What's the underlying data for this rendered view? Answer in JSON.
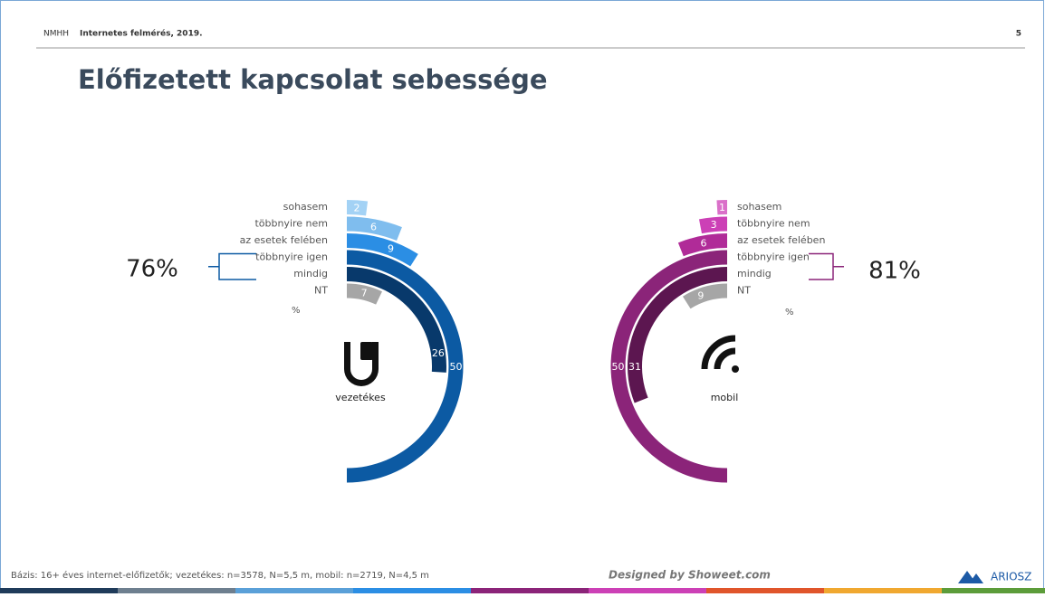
{
  "header": {
    "logo": "NMHH",
    "survey": "Internetes felmérés, 2019.",
    "page": "5"
  },
  "title": "Előfizetett kapcsolat sebessége",
  "chart_data": [
    {
      "type": "radial_bar",
      "direction": "clockwise",
      "name": "vezetékes",
      "categories": [
        "sohasem",
        "többnyire nem",
        "az esetek felében",
        "többnyire igen",
        "mindig",
        "NT"
      ],
      "values": [
        2,
        6,
        9,
        50,
        26,
        7
      ],
      "colors": [
        "#a3d2f5",
        "#7fbdee",
        "#2b8ee4",
        "#0c5aa3",
        "#08396b",
        "#a6a6a6"
      ],
      "full_circle": 100,
      "unit_label": "%",
      "summary": "76%"
    },
    {
      "type": "radial_bar",
      "direction": "counterclockwise",
      "name": "mobil",
      "categories": [
        "sohasem",
        "többnyire nem",
        "az esetek felében",
        "többnyire igen",
        "mindig",
        "NT"
      ],
      "values": [
        1,
        3,
        6,
        50,
        31,
        9
      ],
      "colors": [
        "#da70c9",
        "#cc40b6",
        "#b02b98",
        "#8b2479",
        "#5c1650",
        "#a6a6a6"
      ],
      "full_circle": 100,
      "unit_label": "%",
      "summary": "81%"
    }
  ],
  "footer": {
    "base": "Bázis: 16+ éves internet-előfizetők; vezetékes: n=3578, N=5,5 m, mobil: n=2719, N=4,5 m",
    "credit": "Designed by Showeet.com",
    "brand": "ARIOSZ"
  }
}
